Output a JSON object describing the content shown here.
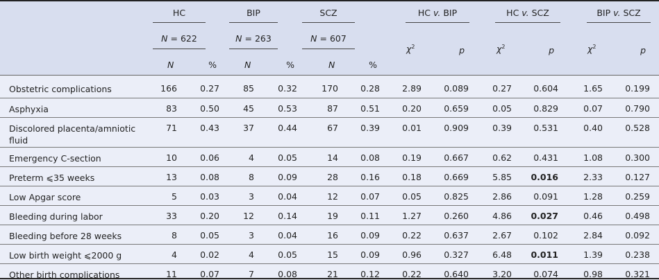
{
  "header": {
    "groups": [
      {
        "name": "HC",
        "n_label": "N",
        "n_eq": " = 622"
      },
      {
        "name": "BIP",
        "n_label": "N",
        "n_eq": " = 263"
      },
      {
        "name": "SCZ",
        "n_label": "N",
        "n_eq": " = 607"
      }
    ],
    "comparisons": [
      {
        "a": "HC ",
        "v": "v.",
        "b": " BIP"
      },
      {
        "a": "HC ",
        "v": "v.",
        "b": " SCZ"
      },
      {
        "a": "BIP ",
        "v": "v.",
        "b": " SCZ"
      }
    ],
    "sub_n": "N",
    "sub_pct": "%",
    "chi": "χ",
    "chi_sup": "2",
    "p": "p"
  },
  "rows": [
    {
      "label": "Obstetric complications",
      "v": [
        "166",
        "0.27",
        "85",
        "0.32",
        "170",
        "0.28",
        "2.89",
        "0.089",
        "0.27",
        "0.604",
        "1.65",
        "0.199"
      ],
      "bold": []
    },
    {
      "label": "Asphyxia",
      "v": [
        "83",
        "0.50",
        "45",
        "0.53",
        "87",
        "0.51",
        "0.20",
        "0.659",
        "0.05",
        "0.829",
        "0.07",
        "0.790"
      ],
      "bold": []
    },
    {
      "label": "Discolored placenta/amniotic fluid",
      "v": [
        "71",
        "0.43",
        "37",
        "0.44",
        "67",
        "0.39",
        "0.01",
        "0.909",
        "0.39",
        "0.531",
        "0.40",
        "0.528"
      ],
      "bold": []
    },
    {
      "label": "Emergency C-section",
      "v": [
        "10",
        "0.06",
        "4",
        "0.05",
        "14",
        "0.08",
        "0.19",
        "0.667",
        "0.62",
        "0.431",
        "1.08",
        "0.300"
      ],
      "bold": []
    },
    {
      "label": "Preterm ⩽35 weeks",
      "v": [
        "13",
        "0.08",
        "8",
        "0.09",
        "28",
        "0.16",
        "0.18",
        "0.669",
        "5.85",
        "0.016",
        "2.33",
        "0.127"
      ],
      "bold": [
        9
      ]
    },
    {
      "label": "Low Apgar score",
      "v": [
        "5",
        "0.03",
        "3",
        "0.04",
        "12",
        "0.07",
        "0.05",
        "0.825",
        "2.86",
        "0.091",
        "1.28",
        "0.259"
      ],
      "bold": []
    },
    {
      "label": "Bleeding during labor",
      "v": [
        "33",
        "0.20",
        "12",
        "0.14",
        "19",
        "0.11",
        "1.27",
        "0.260",
        "4.86",
        "0.027",
        "0.46",
        "0.498"
      ],
      "bold": [
        9
      ]
    },
    {
      "label": "Bleeding before 28 weeks",
      "v": [
        "8",
        "0.05",
        "3",
        "0.04",
        "16",
        "0.09",
        "0.22",
        "0.637",
        "2.67",
        "0.102",
        "2.84",
        "0.092"
      ],
      "bold": []
    },
    {
      "label": "Low birth weight ⩽2000 g",
      "v": [
        "4",
        "0.02",
        "4",
        "0.05",
        "15",
        "0.09",
        "0.96",
        "0.327",
        "6.48",
        "0.011",
        "1.39",
        "0.238"
      ],
      "bold": [
        9
      ]
    },
    {
      "label": "Other birth complications",
      "v": [
        "11",
        "0.07",
        "7",
        "0.08",
        "21",
        "0.12",
        "0.22",
        "0.640",
        "3.20",
        "0.074",
        "0.98",
        "0.321"
      ],
      "bold": []
    }
  ]
}
